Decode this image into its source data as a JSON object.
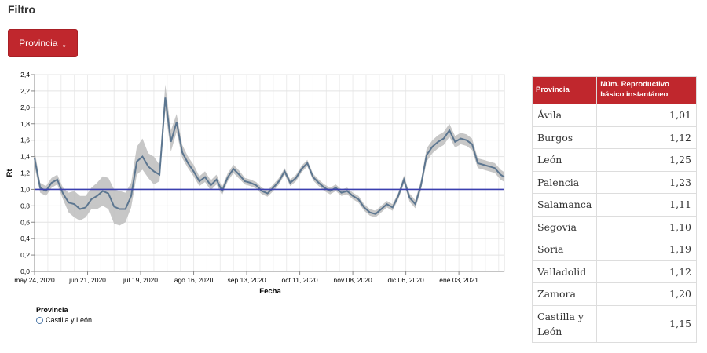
{
  "filter": {
    "title": "Filtro"
  },
  "button": {
    "label": "Provincia",
    "icon": "arrow-down-icon",
    "color": "#c0272d"
  },
  "chart_data": {
    "type": "line",
    "ylabel": "Rt",
    "xlabel": "Fecha",
    "ylim": [
      0,
      2.4
    ],
    "yticks": [
      "0,0",
      "0,2",
      "0,4",
      "0,6",
      "0,8",
      "1,0",
      "1,2",
      "1,4",
      "1,6",
      "1,8",
      "2,0",
      "2,2",
      "2,4"
    ],
    "xlim": [
      "2020-05-24",
      "2021-01-27"
    ],
    "xticks": [
      {
        "date": "2020-05-24",
        "label": "may 24, 2020"
      },
      {
        "date": "2020-06-21",
        "label": "jun 21, 2020"
      },
      {
        "date": "2020-07-19",
        "label": "jul 19, 2020"
      },
      {
        "date": "2020-08-16",
        "label": "ago 16, 2020"
      },
      {
        "date": "2020-09-13",
        "label": "sep 13, 2020"
      },
      {
        "date": "2020-10-11",
        "label": "oct 11, 2020"
      },
      {
        "date": "2020-11-08",
        "label": "nov 08, 2020"
      },
      {
        "date": "2020-12-06",
        "label": "dic 06, 2020"
      },
      {
        "date": "2021-01-03",
        "label": "ene 03, 2021"
      }
    ],
    "grid": true,
    "reference_line": 1.0,
    "colors": {
      "line": "#5c7690",
      "band": "#bdbdbd",
      "reference": "#3b3fb0"
    },
    "legend": {
      "title": "Provincia",
      "placement": "bottom-left"
    },
    "series": [
      {
        "name": "Castilla y León",
        "x": [
          "2020-05-24",
          "2020-05-27",
          "2020-05-30",
          "2020-06-02",
          "2020-06-05",
          "2020-06-08",
          "2020-06-11",
          "2020-06-14",
          "2020-06-17",
          "2020-06-20",
          "2020-06-23",
          "2020-06-26",
          "2020-06-29",
          "2020-07-02",
          "2020-07-05",
          "2020-07-08",
          "2020-07-11",
          "2020-07-14",
          "2020-07-17",
          "2020-07-20",
          "2020-07-23",
          "2020-07-26",
          "2020-07-29",
          "2020-08-01",
          "2020-08-04",
          "2020-08-07",
          "2020-08-10",
          "2020-08-13",
          "2020-08-16",
          "2020-08-19",
          "2020-08-22",
          "2020-08-25",
          "2020-08-28",
          "2020-08-31",
          "2020-09-03",
          "2020-09-06",
          "2020-09-09",
          "2020-09-12",
          "2020-09-15",
          "2020-09-18",
          "2020-09-21",
          "2020-09-24",
          "2020-09-27",
          "2020-09-30",
          "2020-10-03",
          "2020-10-06",
          "2020-10-09",
          "2020-10-12",
          "2020-10-15",
          "2020-10-18",
          "2020-10-21",
          "2020-10-24",
          "2020-10-27",
          "2020-10-30",
          "2020-11-02",
          "2020-11-05",
          "2020-11-08",
          "2020-11-11",
          "2020-11-14",
          "2020-11-17",
          "2020-11-20",
          "2020-11-23",
          "2020-11-26",
          "2020-11-29",
          "2020-12-02",
          "2020-12-05",
          "2020-12-08",
          "2020-12-11",
          "2020-12-14",
          "2020-12-17",
          "2020-12-20",
          "2020-12-23",
          "2020-12-26",
          "2020-12-29",
          "2021-01-01",
          "2021-01-04",
          "2021-01-07",
          "2021-01-10",
          "2021-01-13",
          "2021-01-16",
          "2021-01-19",
          "2021-01-22",
          "2021-01-25",
          "2021-01-27"
        ],
        "y": [
          1.38,
          1.02,
          0.98,
          1.08,
          1.12,
          0.95,
          0.84,
          0.82,
          0.76,
          0.78,
          0.88,
          0.92,
          0.98,
          0.95,
          0.79,
          0.76,
          0.76,
          0.92,
          1.34,
          1.4,
          1.28,
          1.22,
          1.18,
          2.12,
          1.58,
          1.82,
          1.45,
          1.32,
          1.22,
          1.1,
          1.15,
          1.05,
          1.12,
          0.98,
          1.15,
          1.25,
          1.18,
          1.1,
          1.08,
          1.05,
          0.98,
          0.95,
          1.02,
          1.1,
          1.22,
          1.08,
          1.14,
          1.25,
          1.32,
          1.15,
          1.08,
          1.02,
          0.98,
          1.02,
          0.96,
          0.98,
          0.92,
          0.88,
          0.78,
          0.72,
          0.7,
          0.76,
          0.82,
          0.78,
          0.92,
          1.12,
          0.9,
          0.82,
          1.05,
          1.42,
          1.52,
          1.58,
          1.62,
          1.72,
          1.58,
          1.62,
          1.6,
          1.55,
          1.32,
          1.3,
          1.28,
          1.26,
          1.18,
          1.15
        ],
        "lower": [
          1.28,
          0.96,
          0.92,
          1.02,
          1.06,
          0.88,
          0.72,
          0.66,
          0.62,
          0.66,
          0.76,
          0.76,
          0.8,
          0.76,
          0.58,
          0.56,
          0.6,
          0.78,
          1.18,
          1.24,
          1.14,
          1.06,
          1.1,
          1.96,
          1.46,
          1.7,
          1.38,
          1.26,
          1.16,
          1.04,
          1.09,
          0.99,
          1.06,
          0.93,
          1.1,
          1.2,
          1.13,
          1.06,
          1.04,
          1.01,
          0.94,
          0.91,
          0.98,
          1.06,
          1.18,
          1.04,
          1.1,
          1.21,
          1.28,
          1.11,
          1.04,
          0.98,
          0.94,
          0.98,
          0.92,
          0.94,
          0.88,
          0.84,
          0.74,
          0.68,
          0.66,
          0.72,
          0.78,
          0.74,
          0.88,
          1.07,
          0.85,
          0.77,
          0.99,
          1.34,
          1.44,
          1.5,
          1.54,
          1.64,
          1.51,
          1.55,
          1.53,
          1.48,
          1.26,
          1.24,
          1.22,
          1.2,
          1.12,
          1.09
        ],
        "upper": [
          1.48,
          1.08,
          1.04,
          1.14,
          1.18,
          1.02,
          0.96,
          0.98,
          0.92,
          0.92,
          1.02,
          1.08,
          1.16,
          1.14,
          1.0,
          0.98,
          0.96,
          1.08,
          1.52,
          1.62,
          1.44,
          1.4,
          1.3,
          2.28,
          1.72,
          1.92,
          1.54,
          1.4,
          1.3,
          1.16,
          1.22,
          1.11,
          1.18,
          1.03,
          1.2,
          1.3,
          1.23,
          1.14,
          1.12,
          1.09,
          1.02,
          0.99,
          1.06,
          1.14,
          1.26,
          1.12,
          1.18,
          1.29,
          1.36,
          1.19,
          1.12,
          1.06,
          1.02,
          1.06,
          1.0,
          1.02,
          0.96,
          0.92,
          0.82,
          0.76,
          0.74,
          0.8,
          0.86,
          0.82,
          0.96,
          1.17,
          0.95,
          0.87,
          1.11,
          1.5,
          1.6,
          1.66,
          1.7,
          1.8,
          1.65,
          1.69,
          1.67,
          1.62,
          1.38,
          1.36,
          1.34,
          1.32,
          1.24,
          1.21
        ]
      }
    ]
  },
  "table": {
    "headers": [
      "Provincia",
      "Núm. Reproductivo básico instantáneo"
    ],
    "rows": [
      {
        "provincia": "Ávila",
        "value": "1,01"
      },
      {
        "provincia": "Burgos",
        "value": "1,12"
      },
      {
        "provincia": "León",
        "value": "1,25"
      },
      {
        "provincia": "Palencia",
        "value": "1,23"
      },
      {
        "provincia": "Salamanca",
        "value": "1,11"
      },
      {
        "provincia": "Segovia",
        "value": "1,10"
      },
      {
        "provincia": "Soria",
        "value": "1,19"
      },
      {
        "provincia": "Valladolid",
        "value": "1,12"
      },
      {
        "provincia": "Zamora",
        "value": "1,20"
      },
      {
        "provincia": "Castilla y León",
        "value": "1,15"
      }
    ]
  }
}
